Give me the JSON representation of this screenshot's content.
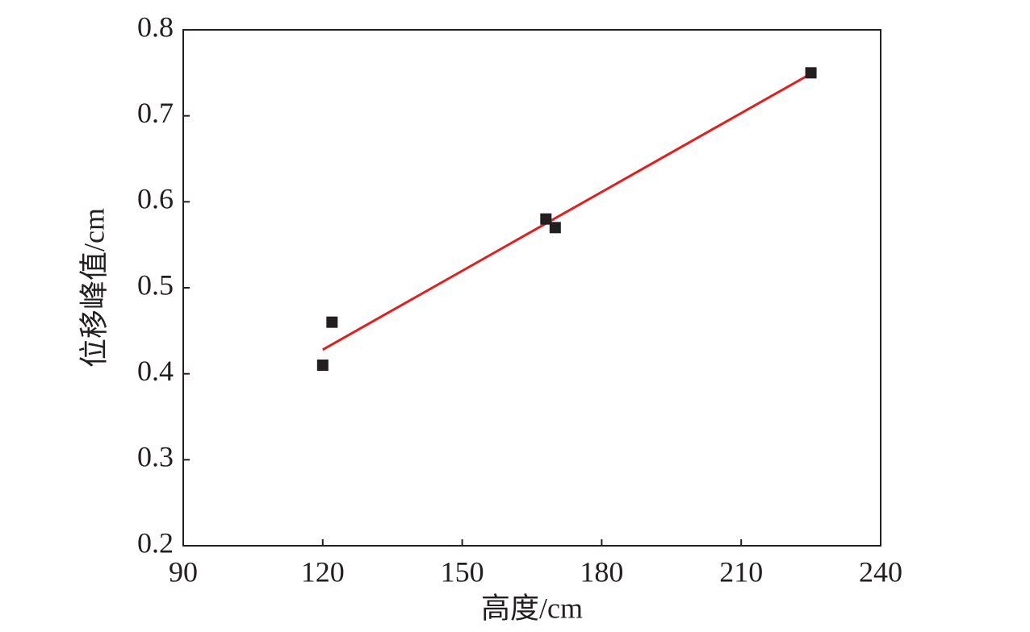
{
  "chart_data": {
    "type": "scatter",
    "xlabel": "高度/cm",
    "ylabel": "位移峰值/cm",
    "xlim": [
      90,
      240
    ],
    "xticks": [
      90,
      120,
      150,
      180,
      210,
      240
    ],
    "ylim": [
      0.2,
      0.8
    ],
    "yticks": [
      0.2,
      0.3,
      0.4,
      0.5,
      0.6,
      0.7,
      0.8
    ],
    "series": [
      {
        "color": "#231f20",
        "x": [
          120,
          122,
          168,
          170,
          225
        ],
        "values": [
          0.41,
          0.46,
          0.58,
          0.57,
          0.75
        ]
      }
    ],
    "fit": {
      "color": "#e02020",
      "x": [
        120,
        225
      ],
      "values": [
        0.428,
        0.749
      ]
    }
  }
}
